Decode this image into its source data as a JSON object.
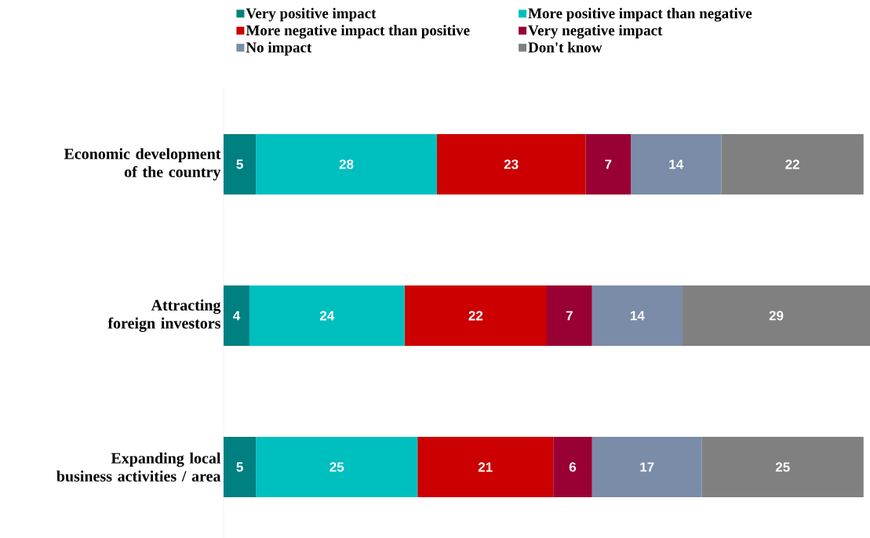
{
  "chart_data": {
    "type": "bar",
    "orientation": "horizontal",
    "stacked": true,
    "data_labels": true,
    "legend": "top",
    "categories": [
      "Economic development of the country",
      "Attracting foreign investors",
      "Expanding local business activities / area"
    ],
    "series": [
      {
        "name": "Very positive impact",
        "color": "#008080",
        "values": [
          5,
          4,
          5
        ]
      },
      {
        "name": "More positive impact than negative",
        "color": "#00BFBF",
        "values": [
          28,
          24,
          25
        ]
      },
      {
        "name": "More negative impact than positive",
        "color": "#CC0000",
        "values": [
          23,
          22,
          21
        ]
      },
      {
        "name": "Very negative impact",
        "color": "#990033",
        "values": [
          7,
          7,
          6
        ]
      },
      {
        "name": "No impact",
        "color": "#7A8CA8",
        "values": [
          14,
          14,
          17
        ]
      },
      {
        "name": "Don't know",
        "color": "#808080",
        "values": [
          22,
          29,
          25
        ]
      }
    ]
  }
}
